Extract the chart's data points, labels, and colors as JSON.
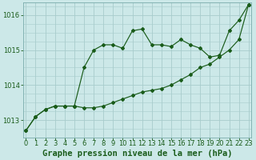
{
  "title": "Graphe pression niveau de la mer (hPa)",
  "background_color": "#cce8e8",
  "plot_bg_color": "#cce8e8",
  "line_color": "#1a5c1a",
  "grid_color": "#a8cccc",
  "tick_color": "#1a5c1a",
  "xlabel_color": "#1a5c1a",
  "x_values": [
    0,
    1,
    2,
    3,
    4,
    5,
    6,
    7,
    8,
    9,
    10,
    11,
    12,
    13,
    14,
    15,
    16,
    17,
    18,
    19,
    20,
    21,
    22,
    23
  ],
  "series1": [
    1012.7,
    1013.1,
    1013.3,
    1013.4,
    1013.4,
    1013.4,
    1013.35,
    1013.35,
    1013.4,
    1013.5,
    1013.6,
    1013.7,
    1013.8,
    1013.85,
    1013.9,
    1014.0,
    1014.15,
    1014.3,
    1014.5,
    1014.6,
    1014.8,
    1015.0,
    1015.3,
    1016.3
  ],
  "series2": [
    1012.7,
    1013.1,
    1013.3,
    1013.4,
    1013.4,
    1013.4,
    1014.5,
    1015.0,
    1015.15,
    1015.15,
    1015.05,
    1015.55,
    1015.6,
    1015.15,
    1015.15,
    1015.1,
    1015.3,
    1015.15,
    1015.05,
    1014.8,
    1014.85,
    1015.55,
    1015.85,
    1016.3
  ],
  "ylim": [
    1012.5,
    1016.35
  ],
  "yticks": [
    1013,
    1014,
    1015,
    1016
  ],
  "xticks": [
    0,
    1,
    2,
    3,
    4,
    5,
    6,
    7,
    8,
    9,
    10,
    11,
    12,
    13,
    14,
    15,
    16,
    17,
    18,
    19,
    20,
    21,
    22,
    23
  ],
  "title_fontsize": 7.5,
  "tick_fontsize": 6.0
}
